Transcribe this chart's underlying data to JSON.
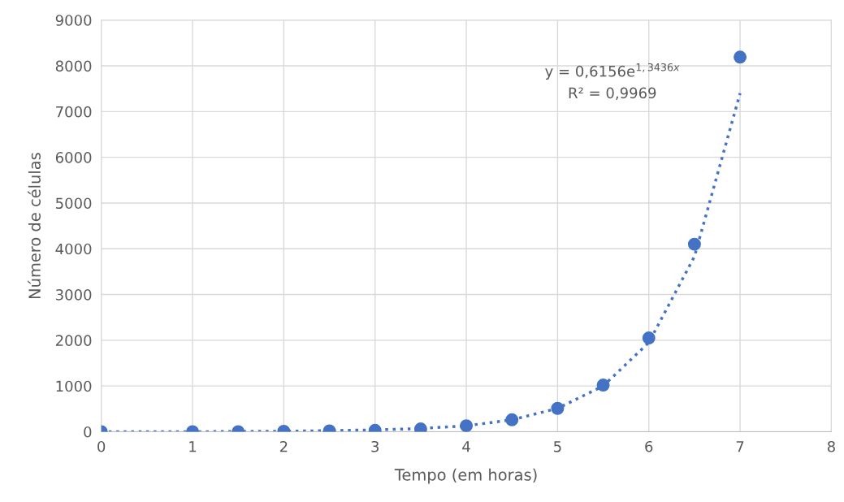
{
  "chart_data": {
    "type": "scatter",
    "xlabel": "Tempo (em horas)",
    "ylabel": "Número de células",
    "x": [
      0,
      1,
      1.5,
      2,
      2.5,
      3,
      3.5,
      4,
      4.5,
      5,
      5.5,
      6,
      6.5,
      7
    ],
    "series": [
      {
        "color": "#4472c4",
        "marker": "circle",
        "values": [
          0,
          0,
          0,
          10,
          20,
          30,
          60,
          130,
          260,
          510,
          1020,
          2050,
          4100,
          8190
        ]
      },
      {
        "type": "line",
        "color": "#4472c4",
        "line_style": "dotted",
        "marker": "none",
        "x": [
          0,
          1,
          2,
          3,
          3.5,
          4,
          4.5,
          5,
          5.5,
          6,
          6.5,
          7
        ],
        "values": [
          0,
          0,
          10,
          40,
          70,
          130,
          260,
          510,
          1000,
          1950,
          3830,
          7400
        ]
      }
    ],
    "xlim": [
      0,
      8
    ],
    "xticks": [
      0,
      1,
      2,
      3,
      4,
      5,
      6,
      7,
      8
    ],
    "ylim": [
      0,
      9000
    ],
    "yticks": [
      0,
      1000,
      2000,
      3000,
      4000,
      5000,
      6000,
      7000,
      8000,
      9000
    ],
    "grid": true,
    "annotations": [
      "y = 0,6156e$^{1,3436x}$",
      "R² = 0,9969"
    ]
  }
}
